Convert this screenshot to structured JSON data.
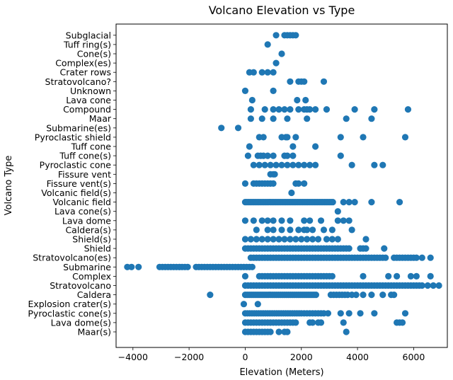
{
  "chart_data": {
    "type": "scatter",
    "title": "Volcano Elevation vs Type",
    "xlabel": "Elevation (Meters)",
    "ylabel": "Volcano Type",
    "xlim": [
      -4600,
      7200
    ],
    "xticks": [
      -4000,
      -2000,
      0,
      2000,
      4000,
      6000
    ],
    "xtick_labels": [
      "−4000",
      "−2000",
      "0",
      "2000",
      "4000",
      "6000"
    ],
    "color": "#1f77b4",
    "grid": false,
    "categories": [
      "Maar(s)",
      "Lava dome(s)",
      "Pyroclastic cone(s)",
      "Explosion crater(s)",
      "Caldera",
      "Stratovolcano",
      "Complex",
      "Submarine",
      "Stratovolcano(es)",
      "Shield",
      "Shield(s)",
      "Caldera(s)",
      "Lava dome",
      "Lava cone(s)",
      "Volcanic field",
      "Volcanic field(s)",
      "Fissure vent(s)",
      "Fissure vent",
      "Pyroclastic cone",
      "Tuff cone(s)",
      "Tuff cone",
      "Pyroclastic shield",
      "Submarine(es)",
      "Maar",
      "Compound",
      "Lava cone",
      "Unknown",
      "Stratovolcano?",
      "Crater rows",
      "Complex(es)",
      "Cone(s)",
      "Tuff ring(s)",
      "Subglacial"
    ],
    "points": {
      "Maar(s)": [
        0,
        100,
        200,
        300,
        400,
        500,
        600,
        700,
        800,
        900,
        1200,
        1400,
        1500,
        3600
      ],
      "Lava dome(s)": [
        0,
        100,
        200,
        300,
        400,
        500,
        600,
        700,
        800,
        900,
        1000,
        1100,
        1200,
        1300,
        1400,
        1500,
        1600,
        1700,
        1800,
        2300,
        2400,
        2600,
        2700,
        3500,
        5400,
        5500,
        5600
      ],
      "Pyroclastic cone(s)": [
        0,
        80,
        160,
        240,
        320,
        400,
        480,
        560,
        640,
        720,
        800,
        880,
        960,
        1040,
        1120,
        1200,
        1280,
        1360,
        1440,
        1520,
        1600,
        1680,
        1760,
        1840,
        1920,
        2000,
        2100,
        2200,
        2300,
        2400,
        2500,
        2600,
        2700,
        2800,
        2950,
        3400,
        3700,
        4100,
        4600,
        5700
      ],
      "Explosion crater(s)": [
        -50,
        450
      ],
      "Caldera": [
        -1250,
        0,
        70,
        140,
        210,
        280,
        350,
        420,
        490,
        560,
        630,
        700,
        770,
        840,
        910,
        980,
        1050,
        1120,
        1190,
        1260,
        1330,
        1400,
        1470,
        1540,
        1610,
        1680,
        1750,
        1820,
        1890,
        1960,
        2030,
        2100,
        2170,
        2240,
        2310,
        2380,
        2450,
        2520,
        3050,
        3150,
        3250,
        3350,
        3450,
        3550,
        3650,
        3800,
        3950,
        4200,
        4500,
        4900,
        5200,
        5300
      ],
      "Stratovolcano": [
        0,
        100,
        200,
        300,
        400,
        500,
        600,
        700,
        800,
        900,
        1000,
        1100,
        1200,
        1300,
        1400,
        1500,
        1600,
        1700,
        1800,
        1900,
        2000,
        2100,
        2200,
        2300,
        2400,
        2500,
        2600,
        2700,
        2800,
        2900,
        3000,
        3100,
        3200,
        3300,
        3400,
        3500,
        3600,
        3700,
        3800,
        3900,
        4000,
        4100,
        4200,
        4300,
        4400,
        4500,
        4600,
        4700,
        4800,
        4900,
        5000,
        5100,
        5200,
        5300,
        5400,
        5500,
        5600,
        5700,
        5800,
        5900,
        6000,
        6100,
        6200,
        6300,
        6500,
        6700,
        6900
      ],
      "Complex": [
        0,
        500,
        600,
        700,
        800,
        900,
        1000,
        1100,
        1200,
        1300,
        1400,
        1500,
        1600,
        1700,
        1800,
        1900,
        2000,
        2100,
        2200,
        2300,
        2400,
        2500,
        2600,
        2700,
        2800,
        2900,
        3000,
        3100,
        4200,
        5100,
        5400,
        5900,
        6100,
        6600
      ],
      "Submarine": [
        -4200,
        -4050,
        -3800,
        -3050,
        -2950,
        -2850,
        -2750,
        -2650,
        -2550,
        -2450,
        -2350,
        -2250,
        -2150,
        -2050,
        -1750,
        -1650,
        -1550,
        -1450,
        -1350,
        -1250,
        -1150,
        -1050,
        -950,
        -850,
        -750,
        -650,
        -550,
        -450,
        -350,
        -250,
        -150,
        -50,
        50,
        150,
        250
      ],
      "Stratovolcano(es)": [
        200,
        300,
        400,
        500,
        600,
        700,
        800,
        900,
        1000,
        1100,
        1200,
        1300,
        1400,
        1500,
        1600,
        1700,
        1800,
        1900,
        2000,
        2100,
        2200,
        2300,
        2400,
        2500,
        2600,
        2700,
        2800,
        2900,
        3000,
        3100,
        3200,
        3300,
        3400,
        3500,
        3600,
        3700,
        3800,
        3900,
        4000,
        4100,
        4200,
        4300,
        4400,
        4500,
        4600,
        4700,
        4800,
        4900,
        5000,
        5300,
        5400,
        5500,
        5600,
        5700,
        5800,
        5900,
        6000,
        6100,
        6300,
        6600
      ],
      "Shield": [
        0,
        100,
        200,
        300,
        400,
        500,
        600,
        700,
        800,
        900,
        1000,
        1100,
        1200,
        1300,
        1400,
        1500,
        1600,
        1700,
        1800,
        1900,
        2000,
        2100,
        2200,
        2300,
        2400,
        2500,
        2600,
        2700,
        2800,
        2900,
        3000,
        3100,
        3200,
        3300,
        3400,
        3500,
        3600,
        3700,
        4100,
        4200,
        4300,
        4950
      ],
      "Shield(s)": [
        0,
        200,
        400,
        600,
        800,
        1000,
        1200,
        1400,
        1600,
        1800,
        2000,
        2200,
        2400,
        2600,
        2900,
        3100,
        3300,
        4300
      ],
      "Caldera(s)": [
        400,
        800,
        1000,
        1300,
        1600,
        1900,
        2100,
        2200,
        2400,
        2800,
        3100,
        3800
      ],
      "Lava dome": [
        0,
        300,
        600,
        800,
        1000,
        1300,
        1600,
        2100,
        2300,
        2700,
        3300,
        3500,
        3700
      ],
      "Lava cone(s)": [
        3300
      ],
      "Volcanic field": [
        0,
        60,
        120,
        180,
        240,
        300,
        360,
        420,
        480,
        540,
        600,
        660,
        720,
        780,
        840,
        900,
        960,
        1020,
        1080,
        1140,
        1200,
        1260,
        1320,
        1380,
        1440,
        1500,
        1560,
        1620,
        1680,
        1740,
        1800,
        1860,
        1920,
        1980,
        2040,
        2100,
        2160,
        2220,
        2280,
        2340,
        2400,
        2460,
        2520,
        2580,
        2640,
        2700,
        2760,
        2820,
        2880,
        2940,
        3000,
        3060,
        3120,
        3500,
        3700,
        3900,
        4500,
        5500
      ],
      "Volcanic field(s)": [
        1650
      ],
      "Fissure vent(s)": [
        0,
        300,
        400,
        500,
        600,
        700,
        800,
        900,
        1000,
        1800,
        1900,
        2100
      ],
      "Fissure vent": [
        900,
        1000,
        1050
      ],
      "Pyroclastic cone": [
        300,
        500,
        700,
        900,
        1100,
        1300,
        1500,
        1700,
        1900,
        2100,
        2300,
        2500,
        3800,
        4600,
        4900
      ],
      "Tuff cone(s)": [
        100,
        450,
        550,
        650,
        800,
        1000,
        1400,
        1500,
        1700,
        3400
      ],
      "Tuff cone": [
        150,
        1700,
        2500
      ],
      "Pyroclastic shield": [
        500,
        650,
        1300,
        1450,
        1500,
        1800,
        3400,
        4200,
        5700
      ],
      "Submarine(es)": [
        -850,
        -250
      ],
      "Maar": [
        200,
        600,
        1000,
        1500,
        2200,
        3600,
        4500
      ],
      "Compound": [
        200,
        700,
        1000,
        1200,
        1400,
        1600,
        1900,
        2100,
        2200,
        2300,
        2500,
        2900,
        3900,
        4600,
        5800
      ],
      "Lava cone": [
        250,
        1850,
        2150
      ],
      "Unknown": [
        0,
        1000
      ],
      "Stratovolcano?": [
        1600,
        1900,
        2000,
        2100,
        2800
      ],
      "Crater rows": [
        150,
        300,
        600,
        800,
        1000
      ],
      "Complex(es)": [
        1100
      ],
      "Cone(s)": [
        1300
      ],
      "Tuff ring(s)": [
        800
      ],
      "Subglacial": [
        1100,
        1400,
        1500,
        1600,
        1700,
        1800
      ]
    }
  }
}
